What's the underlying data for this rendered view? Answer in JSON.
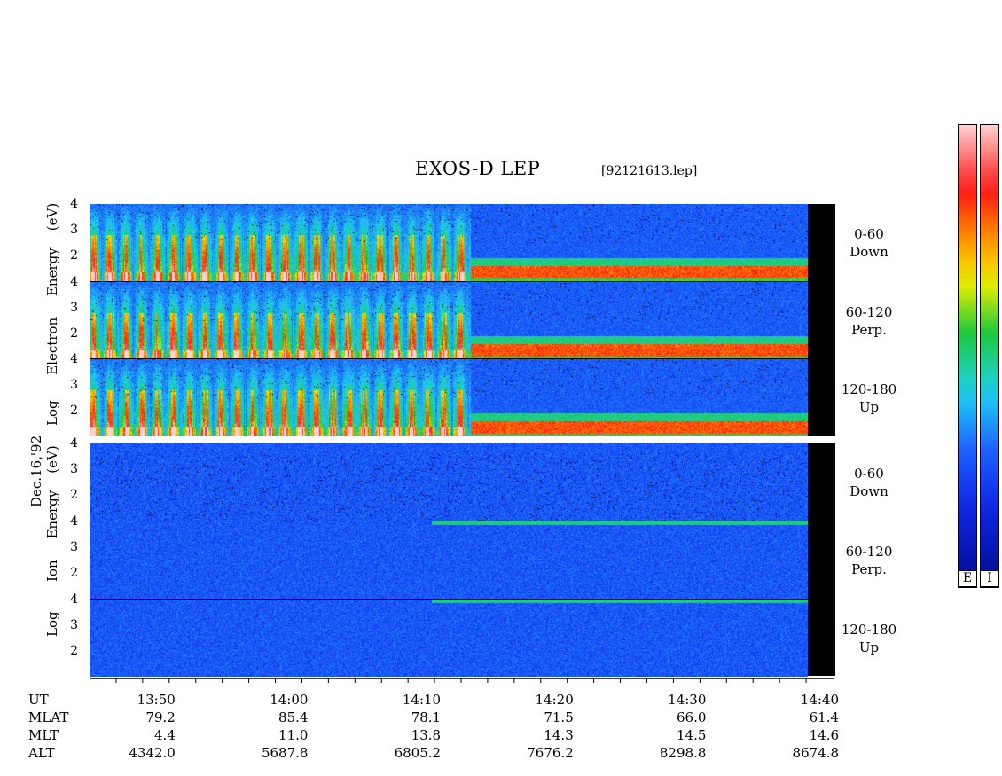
{
  "title": "EXOS-D LEP",
  "filename": "[92121613.lep]",
  "date_label": "Dec.16,'92",
  "electron_label": {
    "log": "Log",
    "species": "Electron",
    "energy": "Energy",
    "unit": "(eV)"
  },
  "ion_label": {
    "log": "Log",
    "species": "Ion",
    "energy": "Energy",
    "unit": "(eV)"
  },
  "channels": [
    {
      "range": "0-60",
      "dir": "Down"
    },
    {
      "range": "60-120",
      "dir": "Perp."
    },
    {
      "range": "120-180",
      "dir": "Up"
    },
    {
      "range": "0-60",
      "dir": "Down"
    },
    {
      "range": "60-120",
      "dir": "Perp."
    },
    {
      "range": "120-180",
      "dir": "Up"
    }
  ],
  "colorbar_labels": [
    "E",
    "I"
  ],
  "colors": {
    "background": "#000a8c",
    "blue": "#1a3cff",
    "cyan": "#20d8f0",
    "green": "#20c840",
    "yellow": "#f0f000",
    "orange": "#ff8c00",
    "red": "#ff1010"
  },
  "chart_data": {
    "type": "heatmap",
    "title": "EXOS-D LEP",
    "ylabel": "Log Energy (eV)",
    "ylim": [
      1,
      4
    ],
    "ytick_labels": [
      "4",
      "3",
      "2"
    ],
    "x_time": [
      "13:50",
      "14:00",
      "14:10",
      "14:20",
      "14:30",
      "14:40"
    ],
    "x_range_minutes": [
      -5,
      51
    ],
    "ephemeris": {
      "UT": [
        "13:50",
        "14:00",
        "14:10",
        "14:20",
        "14:30",
        "14:40"
      ],
      "MLAT": [
        "79.2",
        "85.4",
        "78.1",
        "71.5",
        "66.0",
        "61.4"
      ],
      "MLT": [
        "4.4",
        "11.0",
        "13.8",
        "14.3",
        "14.5",
        "14.6"
      ],
      "ALT": [
        "4342.0",
        "5687.8",
        "6805.2",
        "7676.2",
        "8298.8",
        "8674.8"
      ]
    },
    "panels": [
      {
        "species": "Electron",
        "pitch": "0-60",
        "dir": "Down"
      },
      {
        "species": "Electron",
        "pitch": "60-120",
        "dir": "Perp."
      },
      {
        "species": "Electron",
        "pitch": "120-180",
        "dir": "Up"
      },
      {
        "species": "Ion",
        "pitch": "0-60",
        "dir": "Down"
      },
      {
        "species": "Ion",
        "pitch": "60-120",
        "dir": "Perp."
      },
      {
        "species": "Ion",
        "pitch": "120-180",
        "dir": "Up"
      }
    ]
  }
}
